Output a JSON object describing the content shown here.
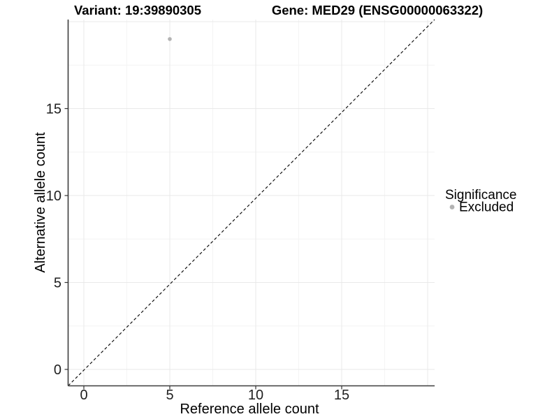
{
  "figure": {
    "title_left": "Variant: 19:39890305",
    "title_right": "Gene: MED29 (ENSG00000063322)"
  },
  "chart_data": {
    "type": "scatter",
    "title": "Variant: 19:39890305 | Gene: MED29 (ENSG00000063322)",
    "xlabel": "Reference allele count",
    "ylabel": "Alternative allele count",
    "xlim": [
      -1,
      20.5
    ],
    "ylim": [
      -1,
      20.2
    ],
    "x_ticks": [
      0,
      5,
      10,
      15
    ],
    "y_ticks": [
      0,
      5,
      10,
      15
    ],
    "grid_major": [
      0,
      5,
      10,
      15,
      20
    ],
    "grid_minor": [
      2.5,
      7.5,
      12.5,
      17.5
    ],
    "grid": true,
    "series": [
      {
        "name": "Excluded",
        "color": "#b3b3b3",
        "points": [
          {
            "x": 5,
            "y": 19
          }
        ]
      }
    ],
    "reference_line": {
      "kind": "identity",
      "style": "dashed",
      "color": "#000000"
    },
    "legend": {
      "title": "Significance",
      "position": "right",
      "items": [
        {
          "label": "Excluded",
          "color": "#b3b3b3",
          "marker": "circle"
        }
      ]
    },
    "colors": {
      "axis_line": "#3d3d3d",
      "tick_mark": "#333333",
      "grid_major": "#e9e9e9",
      "grid_minor": "#f4f4f4",
      "point": "#b3b3b3"
    }
  }
}
